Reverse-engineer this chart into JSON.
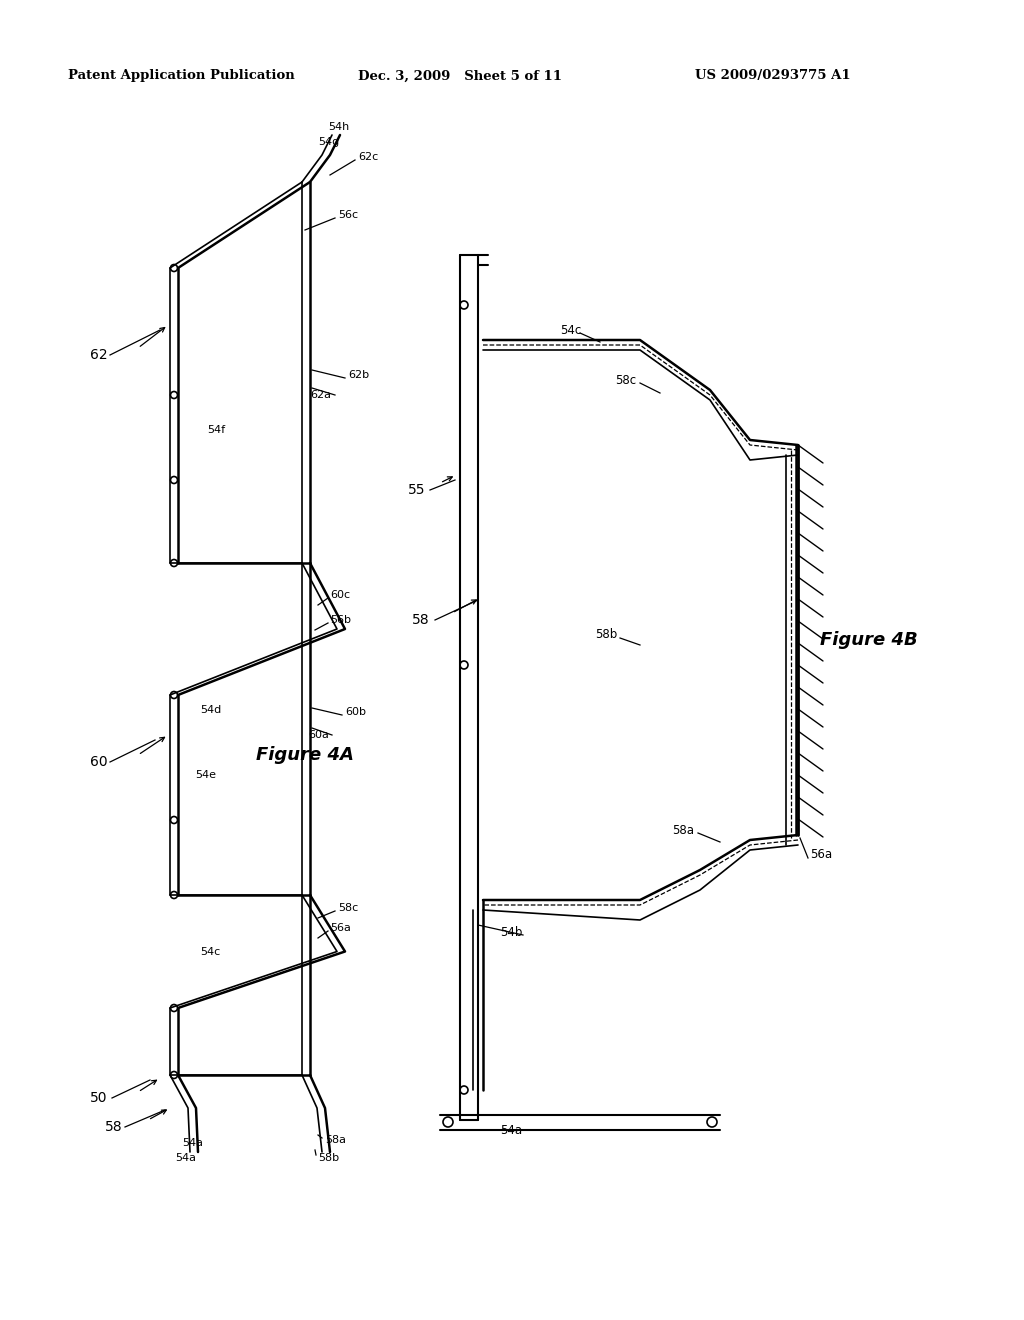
{
  "header_left": "Patent Application Publication",
  "header_mid": "Dec. 3, 2009   Sheet 5 of 11",
  "header_right": "US 2009/0293775 A1",
  "fig4a_label": "Figure 4A",
  "fig4b_label": "Figure 4B",
  "bg_color": "#ffffff"
}
